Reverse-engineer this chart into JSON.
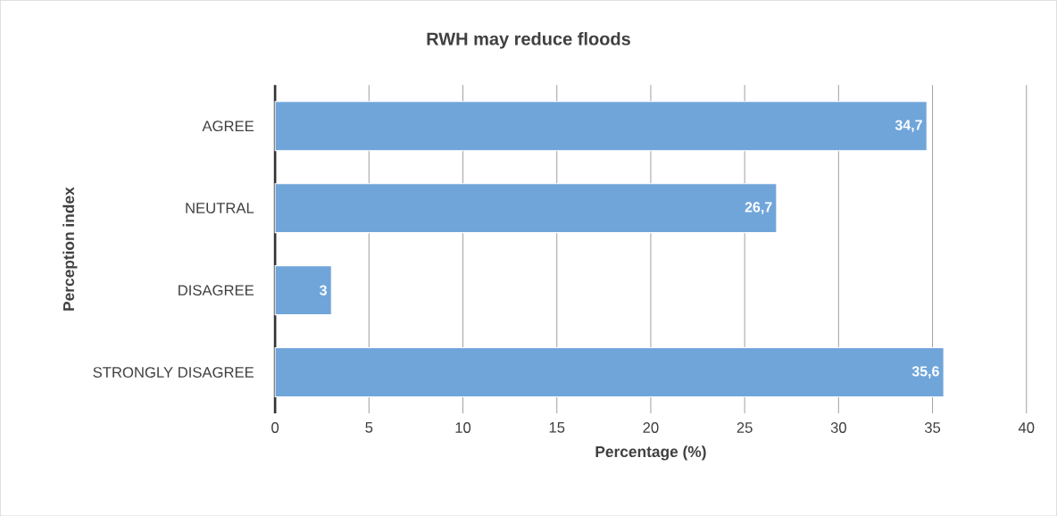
{
  "chart_data": {
    "type": "bar",
    "orientation": "horizontal",
    "title": "RWH may reduce floods",
    "xlabel": "Percentage (%)",
    "ylabel": "Perception index",
    "categories": [
      "AGREE",
      "NEUTRAL",
      "DISAGREE",
      "STRONGLY DISAGREE"
    ],
    "values": [
      34.7,
      26.7,
      3,
      35.6
    ],
    "value_labels": [
      "34,7",
      "26,7",
      "3",
      "35,6"
    ],
    "color": "#70a5da",
    "xlim": [
      0,
      40
    ],
    "xticks": [
      0,
      5,
      10,
      15,
      20,
      25,
      30,
      35,
      40
    ],
    "grid": "x"
  }
}
